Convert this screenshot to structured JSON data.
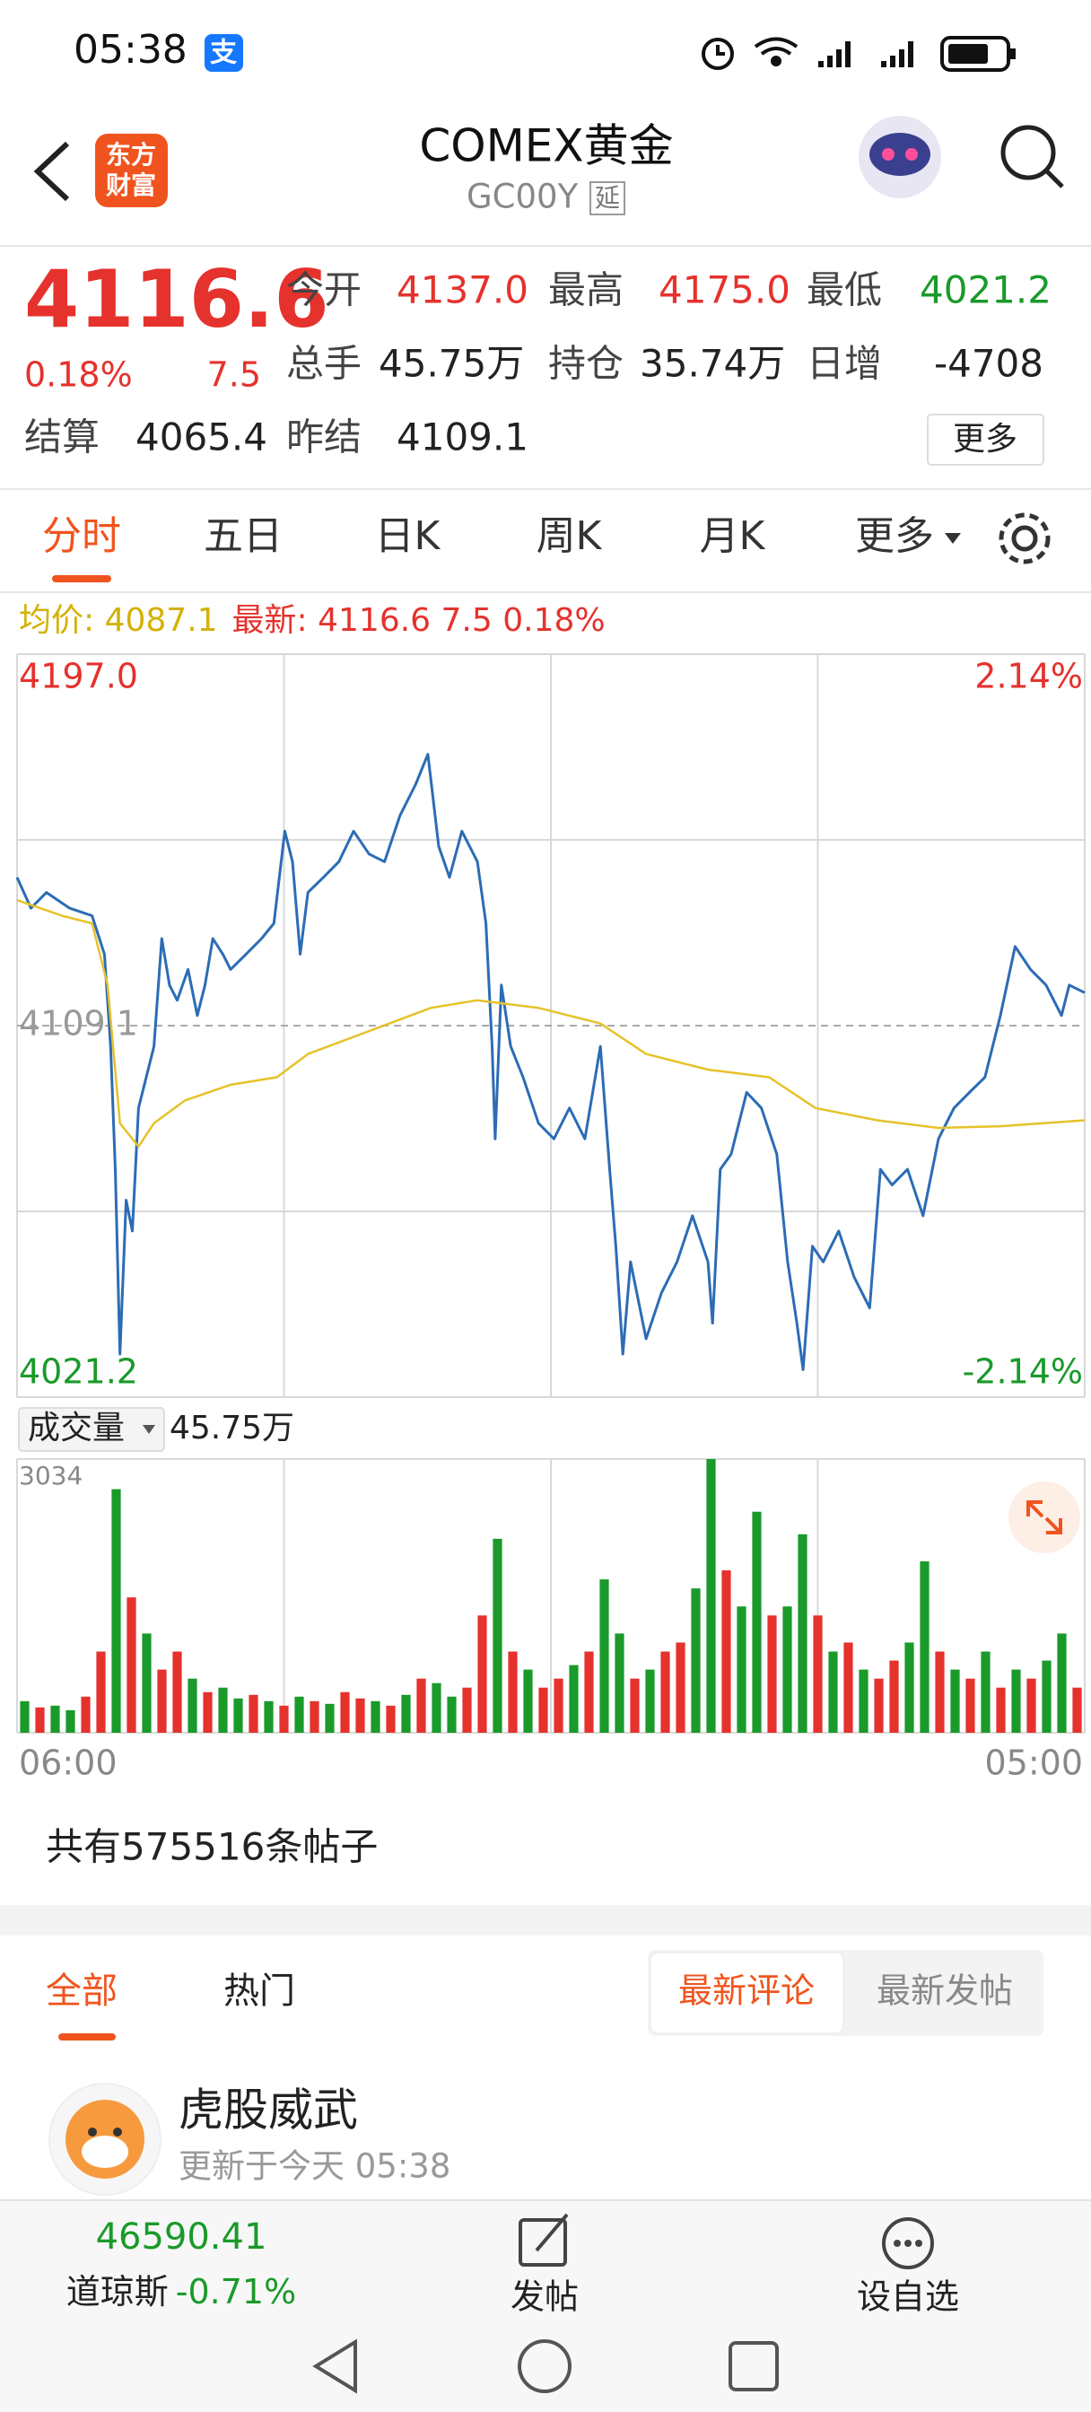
{
  "status_bar": {
    "time": "05:38",
    "app_badge": "支"
  },
  "header": {
    "logo": [
      "东方",
      "财富"
    ],
    "title": "COMEX黄金",
    "code": "GC00Y",
    "delay_badge": "延"
  },
  "quote": {
    "price": "4116.6",
    "change_pct": "0.18%",
    "change": "7.5",
    "fields": [
      {
        "label": "今开",
        "value": "4137.0",
        "color": "#e5322d"
      },
      {
        "label": "最高",
        "value": "4175.0",
        "color": "#e5322d"
      },
      {
        "label": "最低",
        "value": "4021.2",
        "color": "#1a9a2a"
      },
      {
        "label": "总手",
        "value": "45.75万",
        "color": "#222222"
      },
      {
        "label": "持仓",
        "value": "35.74万",
        "color": "#222222"
      },
      {
        "label": "日增",
        "value": "-4708",
        "color": "#222222"
      },
      {
        "label": "结算",
        "value": "4065.4",
        "color": "#222222"
      },
      {
        "label": "昨结",
        "value": "4109.1",
        "color": "#222222"
      }
    ],
    "more_button": "更多"
  },
  "tabs": {
    "items": [
      "分时",
      "五日",
      "日K",
      "周K",
      "月K",
      "更多"
    ],
    "active": 0
  },
  "volume_selector": {
    "label": "成交量",
    "value": "45.75万"
  },
  "chart_data": [
    {
      "type": "line",
      "legend": [
        {
          "text": "均价: 4087.1",
          "color": "#d4b106"
        },
        {
          "text": "最新: 4116.6 7.5 0.18%",
          "color": "#e5322d"
        }
      ],
      "xlim": [
        0,
        1380
      ],
      "ylim": [
        4021.2,
        4197
      ],
      "yticks": [
        {
          "value": 4197,
          "label": "4197.0"
        },
        4109.1,
        {
          "value": 4021.2,
          "label": "4021.2"
        }
      ],
      "y2lim": [
        -2.14,
        2.14
      ],
      "y2ticks": [
        {
          "value": 2.14,
          "label": "2.14%"
        },
        {
          "value": -2.14,
          "label": "-2.14%"
        }
      ],
      "grid": true,
      "series": [
        {
          "color": "#2c6cb5",
          "x": [
            0,
            18,
            38,
            68,
            97,
            113,
            121,
            127,
            133,
            141,
            149,
            157,
            167,
            177,
            187,
            197,
            207,
            221,
            233,
            243,
            253,
            266,
            276,
            296,
            316,
            332,
            346,
            356,
            366,
            376,
            396,
            416,
            435,
            455,
            475,
            495,
            515,
            531,
            545,
            559,
            575,
            595,
            606,
            614,
            618,
            626,
            638,
            654,
            674,
            694,
            714,
            734,
            754,
            766,
            774,
            783,
            793,
            813,
            833,
            853,
            873,
            893,
            899,
            909,
            923,
            943,
            962,
            982,
            996,
            1008,
            1016,
            1028,
            1042,
            1062,
            1082,
            1102,
            1116,
            1131,
            1151,
            1171,
            1191,
            1211,
            1231,
            1251,
            1271,
            1290,
            1310,
            1330,
            1350,
            1360,
            1380
          ],
          "values": [
            4144.2,
            4136.9,
            4140.6,
            4136.9,
            4135.1,
            4126.0,
            4104.2,
            4075.1,
            4031.4,
            4067.8,
            4060.5,
            4089.6,
            4096.9,
            4104.2,
            4129.7,
            4118.7,
            4115.1,
            4122.4,
            4111.5,
            4118.7,
            4129.7,
            4126.0,
            4122.4,
            4126.0,
            4129.7,
            4133.3,
            4155.1,
            4147.9,
            4126.0,
            4140.6,
            4144.2,
            4147.9,
            4155.1,
            4149.7,
            4147.9,
            4158.8,
            4166.1,
            4173.3,
            4151.5,
            4144.2,
            4155.1,
            4147.9,
            4133.3,
            4104.2,
            4082.3,
            4118.7,
            4104.2,
            4096.9,
            4086.0,
            4082.3,
            4089.6,
            4082.3,
            4104.2,
            4075.1,
            4056.9,
            4031.4,
            4053.2,
            4035.0,
            4045.9,
            4053.2,
            4064.1,
            4053.2,
            4038.7,
            4075.1,
            4078.7,
            4093.3,
            4089.6,
            4078.7,
            4053.2,
            4038.7,
            4027.7,
            4056.9,
            4053.2,
            4060.5,
            4049.6,
            4042.3,
            4075.1,
            4071.4,
            4075.1,
            4064.1,
            4082.3,
            4089.6,
            4093.3,
            4096.9,
            4111.5,
            4127.8,
            4122.4,
            4118.7,
            4111.5,
            4118.7,
            4116.9
          ]
        },
        {
          "color": "#e6c22a",
          "x": [
            0,
            58,
            97,
            117,
            133,
            157,
            177,
            217,
            276,
            336,
            376,
            455,
            535,
            595,
            674,
            754,
            813,
            893,
            972,
            1032,
            1112,
            1191,
            1271,
            1380
          ],
          "values": [
            4138.8,
            4135.1,
            4133.3,
            4118.7,
            4086.0,
            4080.5,
            4086.0,
            4091.4,
            4095.1,
            4096.9,
            4102.4,
            4107.8,
            4113.3,
            4115.1,
            4113.3,
            4109.6,
            4102.4,
            4098.7,
            4096.9,
            4089.6,
            4086.7,
            4084.9,
            4085.3,
            4086.7
          ]
        }
      ]
    },
    {
      "type": "bar",
      "xlim": [
        0,
        1380
      ],
      "ylim": [
        0,
        3034
      ],
      "yticks": [
        3034
      ],
      "xticks": [
        {
          "value": 0,
          "label": "06:00"
        },
        {
          "value": 1380,
          "label": "05:00"
        }
      ],
      "values": [
        350,
        280,
        300,
        250,
        400,
        900,
        2700,
        1500,
        1100,
        700,
        900,
        600,
        450,
        500,
        380,
        420,
        350,
        300,
        400,
        350,
        320,
        450,
        380,
        350,
        300,
        420,
        600,
        550,
        400,
        500,
        1300,
        2150,
        900,
        700,
        500,
        600,
        750,
        900,
        1700,
        1100,
        600,
        700,
        900,
        1000,
        1600,
        3034,
        1800,
        1400,
        2450,
        1300,
        1400,
        2200,
        1300,
        900,
        1000,
        700,
        600,
        800,
        1000,
        1900,
        900,
        700,
        600,
        900,
        500,
        700,
        600,
        800,
        1100,
        500
      ],
      "colors": [
        "#1a9a2a",
        "#e5322d",
        "#1a9a2a",
        "#1a9a2a",
        "#e5322d",
        "#e5322d",
        "#1a9a2a",
        "#e5322d",
        "#1a9a2a",
        "#e5322d",
        "#e5322d",
        "#1a9a2a",
        "#e5322d",
        "#1a9a2a",
        "#1a9a2a",
        "#e5322d",
        "#1a9a2a",
        "#e5322d",
        "#1a9a2a",
        "#e5322d",
        "#1a9a2a",
        "#e5322d",
        "#e5322d",
        "#1a9a2a",
        "#e5322d",
        "#1a9a2a",
        "#e5322d",
        "#1a9a2a",
        "#1a9a2a",
        "#e5322d",
        "#e5322d",
        "#1a9a2a",
        "#e5322d",
        "#1a9a2a",
        "#e5322d",
        "#e5322d",
        "#1a9a2a",
        "#e5322d",
        "#1a9a2a",
        "#1a9a2a",
        "#e5322d",
        "#1a9a2a",
        "#e5322d",
        "#e5322d",
        "#1a9a2a",
        "#1a9a2a",
        "#e5322d",
        "#1a9a2a",
        "#1a9a2a",
        "#e5322d",
        "#1a9a2a",
        "#1a9a2a",
        "#e5322d",
        "#1a9a2a",
        "#e5322d",
        "#1a9a2a",
        "#e5322d",
        "#e5322d",
        "#1a9a2a",
        "#1a9a2a",
        "#e5322d",
        "#1a9a2a",
        "#e5322d",
        "#1a9a2a",
        "#e5322d",
        "#1a9a2a",
        "#e5322d",
        "#1a9a2a",
        "#1a9a2a",
        "#e5322d"
      ]
    }
  ],
  "posts": {
    "count": "共有575516条帖子",
    "tabs": [
      "全部",
      "热门"
    ],
    "sort": [
      "最新评论",
      "最新发帖"
    ],
    "user": "虎股威武",
    "updated": "更新于今天 05:38"
  },
  "bottom_bar": {
    "index_value": "46590.41",
    "index_name": "道琼斯",
    "index_change": "-0.71%",
    "post": "发帖",
    "watch": "设自选"
  }
}
